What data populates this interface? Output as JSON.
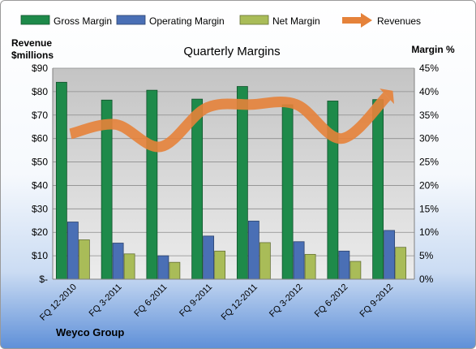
{
  "chart_data": {
    "type": "bar",
    "title": "Quarterly Margins",
    "ylabel_left": "Revenue $millions",
    "ylabel_right": "Margin %",
    "company": "Weyco Group",
    "categories": [
      "FQ 12-2010",
      "FQ 3-2011",
      "FQ 6-2011",
      "FQ 9-2011",
      "FQ 12-2011",
      "FQ 3-2012",
      "FQ 6-2012",
      "FQ 9-2012"
    ],
    "series": [
      {
        "name": "Gross Margin",
        "type": "bar",
        "axis": "right",
        "color": "#1e8a4a",
        "values": [
          42.0,
          38.2,
          40.3,
          38.4,
          41.1,
          37.2,
          38.0,
          38.3
        ]
      },
      {
        "name": "Operating Margin",
        "type": "bar",
        "axis": "right",
        "color": "#4a6fb5",
        "values": [
          12.2,
          7.7,
          5.0,
          9.2,
          12.4,
          8.0,
          6.0,
          10.4
        ]
      },
      {
        "name": "Net Margin",
        "type": "bar",
        "axis": "right",
        "color": "#a9bc58",
        "values": [
          8.4,
          5.4,
          3.6,
          6.0,
          7.8,
          5.3,
          3.8,
          6.8
        ]
      },
      {
        "name": "Revenues",
        "type": "line",
        "axis": "left",
        "color": "#e5823a",
        "values": [
          62.0,
          66.0,
          56.5,
          73.0,
          74.5,
          74.5,
          60.0,
          78.0
        ]
      }
    ],
    "y_left": {
      "min": 0,
      "max": 90,
      "step": 10,
      "ticks": [
        "$-",
        "$10",
        "$20",
        "$30",
        "$40",
        "$50",
        "$60",
        "$70",
        "$80",
        "$90"
      ]
    },
    "y_right": {
      "min": 0,
      "max": 45,
      "step": 5,
      "ticks": [
        "0%",
        "5%",
        "10%",
        "15%",
        "20%",
        "25%",
        "30%",
        "35%",
        "40%",
        "45%"
      ]
    },
    "grid": true,
    "legend_position": "top"
  }
}
